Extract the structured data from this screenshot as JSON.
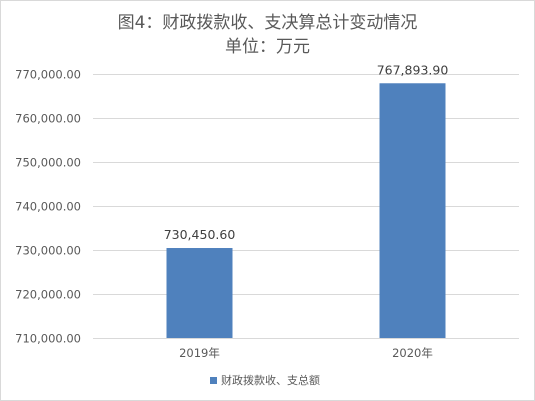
{
  "chart_data": {
    "type": "bar",
    "title": "图4：财政拨款收、支决算总计变动情况",
    "subtitle": "单位：万元",
    "categories": [
      "2019年",
      "2020年"
    ],
    "series": [
      {
        "name": "财政拨款收、支总额",
        "values": [
          730450.6,
          767893.9
        ],
        "data_labels": [
          "730,450.60",
          "767,893.90"
        ],
        "color": "#4F81BD"
      }
    ],
    "y_ticks": [
      "710,000.00",
      "720,000.00",
      "730,000.00",
      "740,000.00",
      "750,000.00",
      "760,000.00",
      "770,000.00"
    ],
    "ylim": [
      710000,
      770000
    ],
    "grid": true,
    "legend_position": "bottom"
  }
}
